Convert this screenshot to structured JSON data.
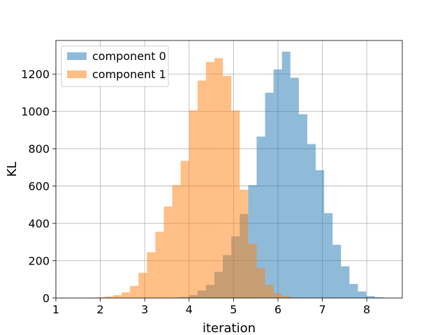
{
  "chart_data": {
    "type": "bar",
    "title": "",
    "xlabel": "iteration",
    "ylabel": "KL",
    "xlim": [
      1,
      8.8
    ],
    "ylim": [
      0,
      1380
    ],
    "xticks": [
      1,
      2,
      3,
      4,
      5,
      6,
      7,
      8
    ],
    "yticks": [
      0,
      200,
      400,
      600,
      800,
      1000,
      1200
    ],
    "grid": true,
    "legend_position": "top-left",
    "bin_width": 0.1905,
    "series": [
      {
        "name": "component 0",
        "color": "#1f77b4",
        "opacity": 0.5,
        "bins": [
          {
            "x0": 3.81,
            "count": 5
          },
          {
            "x0": 4.0,
            "count": 15
          },
          {
            "x0": 4.19,
            "count": 40
          },
          {
            "x0": 4.38,
            "count": 70
          },
          {
            "x0": 4.57,
            "count": 140
          },
          {
            "x0": 4.76,
            "count": 230
          },
          {
            "x0": 4.95,
            "count": 330
          },
          {
            "x0": 5.14,
            "count": 450
          },
          {
            "x0": 5.33,
            "count": 605
          },
          {
            "x0": 5.52,
            "count": 865
          },
          {
            "x0": 5.71,
            "count": 1100
          },
          {
            "x0": 5.9,
            "count": 1225
          },
          {
            "x0": 6.09,
            "count": 1320
          },
          {
            "x0": 6.28,
            "count": 1180
          },
          {
            "x0": 6.47,
            "count": 985
          },
          {
            "x0": 6.66,
            "count": 825
          },
          {
            "x0": 6.85,
            "count": 685
          },
          {
            "x0": 7.04,
            "count": 455
          },
          {
            "x0": 7.23,
            "count": 285
          },
          {
            "x0": 7.42,
            "count": 170
          },
          {
            "x0": 7.61,
            "count": 75
          },
          {
            "x0": 7.8,
            "count": 35
          },
          {
            "x0": 7.99,
            "count": 10
          },
          {
            "x0": 8.18,
            "count": 4
          }
        ]
      },
      {
        "name": "component 1",
        "color": "#ff7f0e",
        "opacity": 0.5,
        "bins": [
          {
            "x0": 1.71,
            "count": 2
          },
          {
            "x0": 1.91,
            "count": 4
          },
          {
            "x0": 2.1,
            "count": 8
          },
          {
            "x0": 2.29,
            "count": 15
          },
          {
            "x0": 2.48,
            "count": 30
          },
          {
            "x0": 2.67,
            "count": 65
          },
          {
            "x0": 2.86,
            "count": 135
          },
          {
            "x0": 3.05,
            "count": 245
          },
          {
            "x0": 3.24,
            "count": 355
          },
          {
            "x0": 3.43,
            "count": 490
          },
          {
            "x0": 3.62,
            "count": 605
          },
          {
            "x0": 3.81,
            "count": 735
          },
          {
            "x0": 4.0,
            "count": 1005
          },
          {
            "x0": 4.19,
            "count": 1165
          },
          {
            "x0": 4.38,
            "count": 1265
          },
          {
            "x0": 4.57,
            "count": 1285
          },
          {
            "x0": 4.76,
            "count": 1190
          },
          {
            "x0": 4.95,
            "count": 1005
          },
          {
            "x0": 5.14,
            "count": 580
          },
          {
            "x0": 5.33,
            "count": 290
          },
          {
            "x0": 5.52,
            "count": 160
          },
          {
            "x0": 5.71,
            "count": 70
          },
          {
            "x0": 5.9,
            "count": 25
          },
          {
            "x0": 6.09,
            "count": 10
          }
        ]
      }
    ]
  }
}
